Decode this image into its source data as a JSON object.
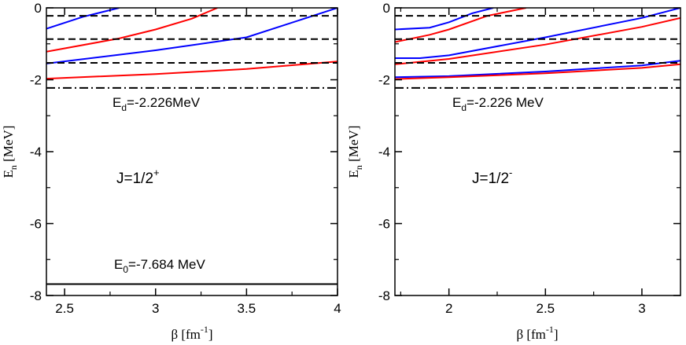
{
  "colors": {
    "red": "#ff0000",
    "blue": "#0000ff",
    "black": "#000000"
  },
  "chart_data": [
    {
      "type": "line",
      "panel": "left",
      "xlim": [
        2.4,
        4.0
      ],
      "ylim": [
        -8,
        0
      ],
      "x_ticks": [
        2.5,
        3,
        3.5,
        4
      ],
      "x_tick_labels": [
        "2.5",
        "3",
        "3.5",
        "4"
      ],
      "y_ticks": [
        0,
        -2,
        -4,
        -6,
        -8
      ],
      "y_tick_labels": [
        "0",
        "-2",
        "-4",
        "-6",
        "-8"
      ],
      "xlabel": {
        "main": "β [fm",
        "sup": "-1",
        "tail": "]"
      },
      "ylabel": {
        "main": "E",
        "sub": "n",
        "tail": " [MeV]"
      },
      "hlines": [
        {
          "y": -0.22,
          "style": "dashed"
        },
        {
          "y": -0.87,
          "style": "dashed"
        },
        {
          "y": -1.53,
          "style": "dashed"
        },
        {
          "y": -2.226,
          "style": "dashdot"
        },
        {
          "y": -7.684,
          "style": "solid"
        }
      ],
      "series": [
        {
          "name": "blue-1",
          "color": "blue",
          "x": [
            2.4,
            2.6,
            2.8
          ],
          "y": [
            -0.58,
            -0.25,
            0.0
          ]
        },
        {
          "name": "red-1",
          "color": "red",
          "x": [
            2.4,
            2.8,
            3.0,
            3.2,
            3.34
          ],
          "y": [
            -1.22,
            -0.85,
            -0.6,
            -0.3,
            0.0
          ]
        },
        {
          "name": "blue-2",
          "color": "blue",
          "x": [
            2.4,
            3.0,
            3.5,
            4.0
          ],
          "y": [
            -1.55,
            -1.18,
            -0.82,
            0.0
          ]
        },
        {
          "name": "red-2",
          "color": "red",
          "x": [
            2.4,
            3.0,
            3.5,
            4.0
          ],
          "y": [
            -1.97,
            -1.84,
            -1.7,
            -1.49
          ]
        }
      ],
      "annotations": {
        "ed": {
          "main": "E",
          "sub": "d",
          "tail": "=-2.226MeV"
        },
        "j": {
          "main": "J=1/2",
          "sup": "+"
        },
        "e0": {
          "main": "E",
          "sub": "0",
          "tail": "=-7.684 MeV"
        }
      }
    },
    {
      "type": "line",
      "panel": "right",
      "xlim": [
        1.72,
        3.2
      ],
      "ylim": [
        -8,
        0
      ],
      "x_ticks": [
        2,
        2.5,
        3
      ],
      "x_tick_labels": [
        "2",
        "2.5",
        "3"
      ],
      "y_ticks": [
        0,
        -2,
        -4,
        -6,
        -8
      ],
      "y_tick_labels": [
        "0",
        "-2",
        "-4",
        "-6",
        "-8"
      ],
      "xlabel": {
        "main": "β [fm",
        "sup": "-1",
        "tail": "]"
      },
      "ylabel": {
        "main": "E",
        "sub": "n",
        "tail": " [MeV]"
      },
      "hlines": [
        {
          "y": -0.22,
          "style": "dashed"
        },
        {
          "y": -0.87,
          "style": "dashed"
        },
        {
          "y": -1.53,
          "style": "dashed"
        },
        {
          "y": -2.226,
          "style": "dashdot"
        }
      ],
      "series": [
        {
          "name": "blue-1",
          "color": "blue",
          "x": [
            1.72,
            1.9,
            2.0,
            2.12,
            2.23
          ],
          "y": [
            -0.6,
            -0.55,
            -0.4,
            -0.15,
            0.0
          ]
        },
        {
          "name": "red-1",
          "color": "red",
          "x": [
            1.72,
            1.9,
            2.0,
            2.2,
            2.4
          ],
          "y": [
            -0.95,
            -0.75,
            -0.6,
            -0.22,
            0.0
          ]
        },
        {
          "name": "blue-2",
          "color": "blue",
          "x": [
            1.72,
            1.85,
            2.0,
            2.5,
            3.0,
            3.2
          ],
          "y": [
            -1.4,
            -1.4,
            -1.32,
            -0.82,
            -0.28,
            0.0
          ]
        },
        {
          "name": "red-2",
          "color": "red",
          "x": [
            1.72,
            2.0,
            2.5,
            3.0,
            3.2
          ],
          "y": [
            -1.57,
            -1.42,
            -1.02,
            -0.53,
            -0.28
          ]
        },
        {
          "name": "blue-3",
          "color": "blue",
          "x": [
            1.72,
            2.0,
            2.5,
            3.0,
            3.2
          ],
          "y": [
            -1.93,
            -1.9,
            -1.77,
            -1.6,
            -1.47
          ]
        },
        {
          "name": "red-3",
          "color": "red",
          "x": [
            1.72,
            2.0,
            2.5,
            3.0,
            3.2
          ],
          "y": [
            -1.98,
            -1.93,
            -1.82,
            -1.67,
            -1.57
          ]
        }
      ],
      "annotations": {
        "ed": {
          "main": "E",
          "sub": "d",
          "tail": "=-2.226 MeV"
        },
        "j": {
          "main": "J=1/2",
          "sup": "-"
        }
      }
    }
  ]
}
